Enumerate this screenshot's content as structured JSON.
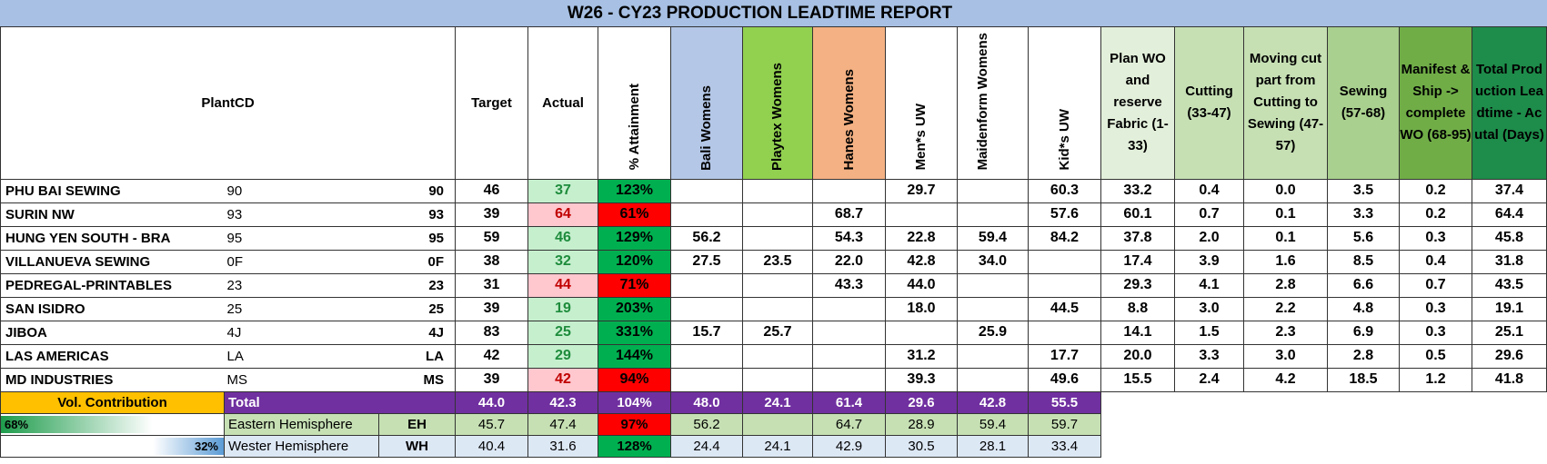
{
  "title": "W26 - CY23 PRODUCTION LEADTIME REPORT",
  "headers": {
    "plant": "PlantCD",
    "target": "Target",
    "actual": "Actual",
    "attainment": "% Attainment",
    "bali": "Bali Womens",
    "playtex": "Playtex Womens",
    "hanes": "Hanes Womens",
    "mens": "Men*s UW",
    "maidenform": "Maidenform Womens",
    "kids": "Kid*s UW",
    "plan": "Plan WO and reserve Fabric (1-33)",
    "cutting": "Cutting (33-47)",
    "moving": "Moving cut part from Cutting to Sewing (47-57)",
    "sewing": "Sewing (57-68)",
    "manifest": "Manifest & Ship -> complete WO (68-95)",
    "total": "Total Production Leadtime - Acutal (Days)"
  },
  "rows": [
    {
      "name": "PHU BAI SEWING",
      "code": "90",
      "code2": "90",
      "target": "46",
      "actual": "37",
      "attain": "123%",
      "bali": "",
      "playtex": "",
      "hanes": "",
      "mens": "29.7",
      "maidenform": "",
      "kids": "60.3",
      "plan": "33.2",
      "cutting": "0.4",
      "moving": "0.0",
      "sewing": "3.5",
      "manifest": "0.2",
      "total": "37.4",
      "ok": true
    },
    {
      "name": "SURIN NW",
      "code": "93",
      "code2": "93",
      "target": "39",
      "actual": "64",
      "attain": "61%",
      "bali": "",
      "playtex": "",
      "hanes": "68.7",
      "mens": "",
      "maidenform": "",
      "kids": "57.6",
      "plan": "60.1",
      "cutting": "0.7",
      "moving": "0.1",
      "sewing": "3.3",
      "manifest": "0.2",
      "total": "64.4",
      "ok": false
    },
    {
      "name": "HUNG YEN SOUTH - BRA",
      "code": "95",
      "code2": "95",
      "target": "59",
      "actual": "46",
      "attain": "129%",
      "bali": "56.2",
      "playtex": "",
      "hanes": "54.3",
      "mens": "22.8",
      "maidenform": "59.4",
      "kids": "84.2",
      "plan": "37.8",
      "cutting": "2.0",
      "moving": "0.1",
      "sewing": "5.6",
      "manifest": "0.3",
      "total": "45.8",
      "ok": true
    },
    {
      "name": "VILLANUEVA SEWING",
      "code": "0F",
      "code2": "0F",
      "target": "38",
      "actual": "32",
      "attain": "120%",
      "bali": "27.5",
      "playtex": "23.5",
      "hanes": "22.0",
      "mens": "42.8",
      "maidenform": "34.0",
      "kids": "",
      "plan": "17.4",
      "cutting": "3.9",
      "moving": "1.6",
      "sewing": "8.5",
      "manifest": "0.4",
      "total": "31.8",
      "ok": true
    },
    {
      "name": "PEDREGAL-PRINTABLES",
      "code": "23",
      "code2": "23",
      "target": "31",
      "actual": "44",
      "attain": "71%",
      "bali": "",
      "playtex": "",
      "hanes": "43.3",
      "mens": "44.0",
      "maidenform": "",
      "kids": "",
      "plan": "29.3",
      "cutting": "4.1",
      "moving": "2.8",
      "sewing": "6.6",
      "manifest": "0.7",
      "total": "43.5",
      "ok": false
    },
    {
      "name": "SAN ISIDRO",
      "code": "25",
      "code2": "25",
      "target": "39",
      "actual": "19",
      "attain": "203%",
      "bali": "",
      "playtex": "",
      "hanes": "",
      "mens": "18.0",
      "maidenform": "",
      "kids": "44.5",
      "plan": "8.8",
      "cutting": "3.0",
      "moving": "2.2",
      "sewing": "4.8",
      "manifest": "0.3",
      "total": "19.1",
      "ok": true
    },
    {
      "name": "JIBOA",
      "code": "4J",
      "code2": "4J",
      "target": "83",
      "actual": "25",
      "attain": "331%",
      "bali": "15.7",
      "playtex": "25.7",
      "hanes": "",
      "mens": "",
      "maidenform": "25.9",
      "kids": "",
      "plan": "14.1",
      "cutting": "1.5",
      "moving": "2.3",
      "sewing": "6.9",
      "manifest": "0.3",
      "total": "25.1",
      "ok": true
    },
    {
      "name": "LAS AMERICAS",
      "code": "LA",
      "code2": "LA",
      "target": "42",
      "actual": "29",
      "attain": "144%",
      "bali": "",
      "playtex": "",
      "hanes": "",
      "mens": "31.2",
      "maidenform": "",
      "kids": "17.7",
      "plan": "20.0",
      "cutting": "3.3",
      "moving": "3.0",
      "sewing": "2.8",
      "manifest": "0.5",
      "total": "29.6",
      "ok": true
    },
    {
      "name": "MD INDUSTRIES",
      "code": "MS",
      "code2": "MS",
      "target": "39",
      "actual": "42",
      "attain": "94%",
      "bali": "",
      "playtex": "",
      "hanes": "",
      "mens": "39.3",
      "maidenform": "",
      "kids": "49.6",
      "plan": "15.5",
      "cutting": "2.4",
      "moving": "4.2",
      "sewing": "18.5",
      "manifest": "1.2",
      "total": "41.8",
      "ok": false
    }
  ],
  "summary": {
    "vol_label": "Vol. Contribution",
    "total": {
      "label": "Total",
      "target": "44.0",
      "actual": "42.3",
      "attain": "104%",
      "bali": "48.0",
      "playtex": "24.1",
      "hanes": "61.4",
      "mens": "29.6",
      "maidenform": "42.8",
      "kids": "55.5"
    },
    "eastern": {
      "pct": "68%",
      "pct_value": 0.68,
      "label": "Eastern Hemisphere",
      "code": "EH",
      "target": "45.7",
      "actual": "47.4",
      "attain": "97%",
      "bali": "56.2",
      "playtex": "",
      "hanes": "64.7",
      "mens": "28.9",
      "maidenform": "59.4",
      "kids": "59.7",
      "ok": false
    },
    "western": {
      "pct": "32%",
      "pct_value": 0.32,
      "label": "Wester Hemisphere",
      "code": "WH",
      "target": "40.4",
      "actual": "31.6",
      "attain": "128%",
      "bali": "24.4",
      "playtex": "24.1",
      "hanes": "42.9",
      "mens": "30.5",
      "maidenform": "28.1",
      "kids": "33.4",
      "ok": true
    }
  },
  "colors": {
    "title_bg": "#a7c0e3",
    "bali_bg": "#b4c7e7",
    "playtex_bg": "#92d050",
    "hanes_bg": "#f4b183",
    "plan_bg": "#e2efda",
    "cutting_bg": "#c6e0b4",
    "moving_bg": "#c6e0b4",
    "sewing_bg": "#a9d08e",
    "manifest_bg": "#70ad47",
    "total_bg": "#1e8c4a",
    "actual_good": "#c6efce",
    "actual_good_text": "#1e8c3c",
    "actual_bad": "#ffc7ce",
    "actual_bad_text": "#c00000",
    "attain_good": "#00b050",
    "attain_bad": "#ff0000",
    "total_row": "#7030a0",
    "vol_contrib": "#ffc000"
  }
}
